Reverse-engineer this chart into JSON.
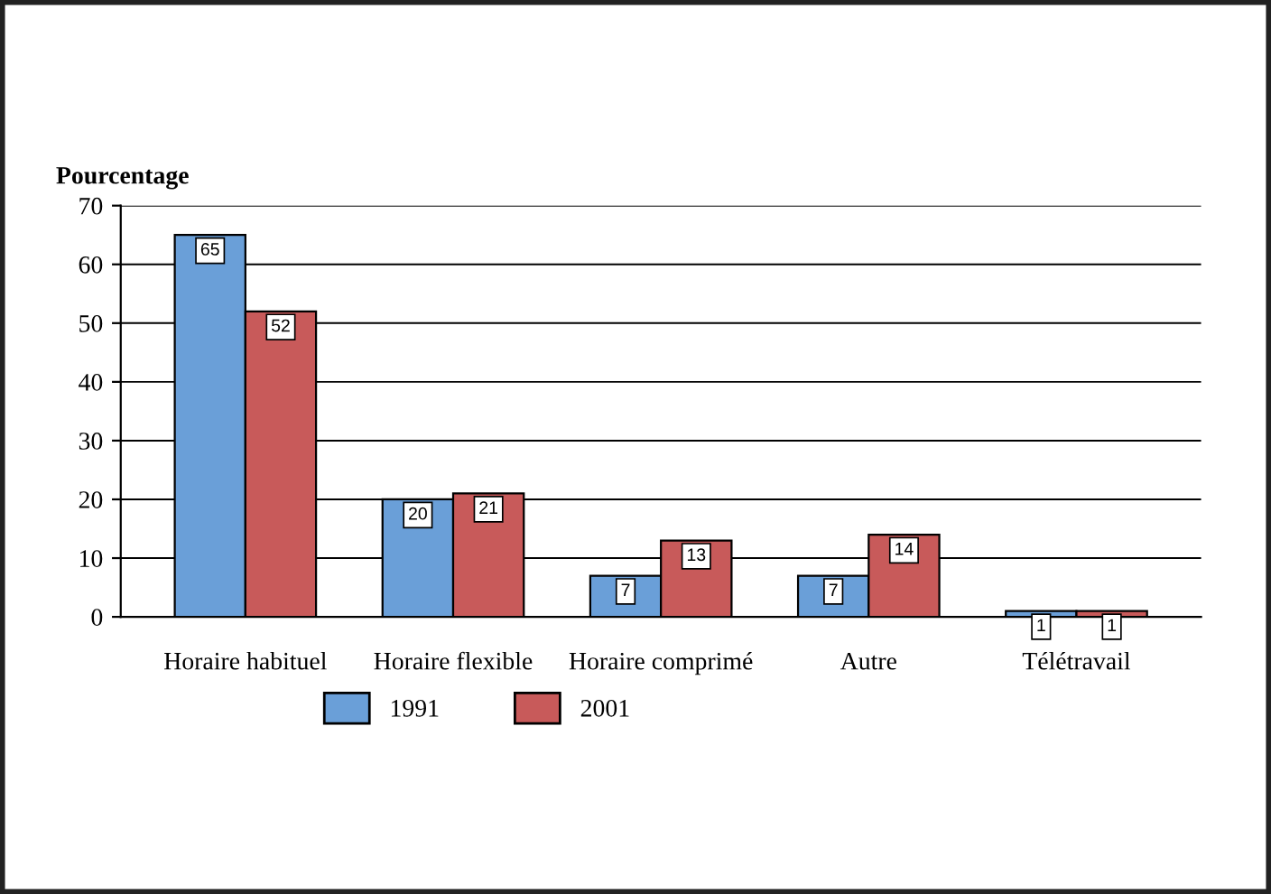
{
  "chart_data": {
    "type": "bar",
    "ylabel": "Pourcentage",
    "categories": [
      "Horaire habituel",
      "Horaire flexible",
      "Horaire comprimé",
      "Autre",
      "Télétravail"
    ],
    "series": [
      {
        "name": "1991",
        "color": "#6a9fd8",
        "values": [
          65,
          20,
          7,
          7,
          1
        ]
      },
      {
        "name": "2001",
        "color": "#c85a5a",
        "values": [
          52,
          21,
          13,
          14,
          1
        ]
      }
    ],
    "ylim": [
      0,
      70
    ],
    "yticks": [
      0,
      10,
      20,
      30,
      40,
      50,
      60,
      70
    ],
    "grid": "y",
    "legend": "bottom",
    "data_labels": true
  }
}
